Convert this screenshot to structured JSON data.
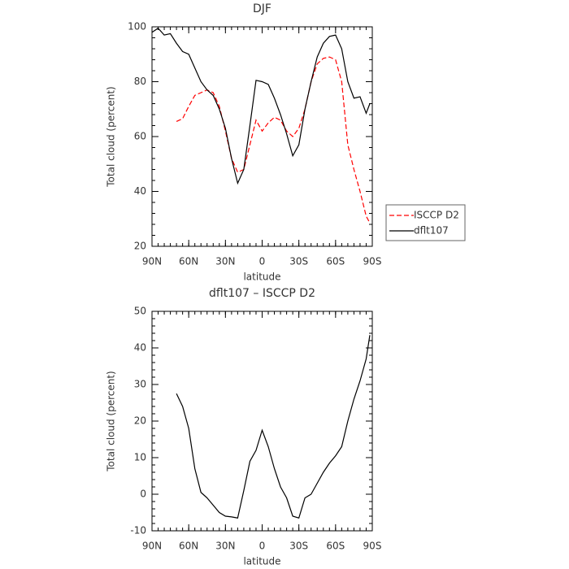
{
  "chart_data": [
    {
      "type": "line",
      "title": "DJF",
      "xlabel": "latitude",
      "ylabel": "Total cloud (percent)",
      "x": [
        90,
        85,
        80,
        75,
        70,
        65,
        60,
        55,
        50,
        45,
        40,
        35,
        30,
        25,
        20,
        15,
        10,
        5,
        0,
        -5,
        -10,
        -15,
        -20,
        -25,
        -30,
        -35,
        -40,
        -45,
        -50,
        -55,
        -60,
        -65,
        -70,
        -75,
        -80,
        -85,
        -88
      ],
      "series": [
        {
          "name": "ISCCP D2",
          "color": "#ff0000",
          "dash": true,
          "values": [
            null,
            null,
            null,
            null,
            65.5,
            66.5,
            71,
            75,
            76,
            77,
            76,
            71,
            62,
            52,
            47,
            48,
            57,
            66,
            62,
            65,
            67,
            66,
            62,
            60,
            63,
            70,
            80,
            86.5,
            88.5,
            89,
            88,
            80,
            57,
            48,
            40,
            31,
            28.5
          ]
        },
        {
          "name": "dflt107",
          "color": "#000000",
          "dash": false,
          "values": [
            98,
            99.5,
            97,
            97.5,
            94,
            91,
            90,
            85,
            80,
            77,
            75,
            70,
            63,
            52,
            43,
            48,
            64,
            80.5,
            80,
            79,
            74,
            68,
            61,
            53,
            57,
            70,
            80,
            89,
            94,
            96.5,
            97,
            92,
            80,
            74,
            74.5,
            68.5,
            72
          ]
        }
      ],
      "xlim": [
        90,
        -90
      ],
      "xticks": [
        {
          "value": 90,
          "label": "90N"
        },
        {
          "value": 60,
          "label": "60N"
        },
        {
          "value": 30,
          "label": "30N"
        },
        0,
        {
          "value": -30,
          "label": "30S"
        },
        {
          "value": -60,
          "label": "60S"
        },
        {
          "value": -90,
          "label": "90S"
        }
      ],
      "ylim": [
        20,
        100
      ],
      "yticks": [
        20,
        40,
        60,
        80,
        100
      ],
      "legend": "right"
    },
    {
      "type": "line",
      "title": "dflt107 – ISCCP D2",
      "xlabel": "latitude",
      "ylabel": "Total cloud (percent)",
      "x": [
        70,
        65,
        60,
        55,
        50,
        45,
        40,
        35,
        30,
        25,
        20,
        15,
        10,
        5,
        0,
        -5,
        -10,
        -15,
        -20,
        -25,
        -30,
        -35,
        -40,
        -45,
        -50,
        -55,
        -60,
        -65,
        -70,
        -75,
        -80,
        -85,
        -88
      ],
      "series": [
        {
          "color": "#000000",
          "dash": false,
          "values": [
            27.5,
            24,
            18,
            7,
            0.5,
            -1,
            -3,
            -5,
            -6,
            -6.2,
            -6.5,
            1,
            9,
            12,
            17.5,
            13,
            7,
            2,
            -1,
            -6,
            -6.5,
            -1,
            0,
            3,
            6,
            8.5,
            10.5,
            13,
            20,
            26,
            31,
            37,
            43.5
          ]
        }
      ],
      "xlim": [
        90,
        -90
      ],
      "xticks": [
        {
          "value": 90,
          "label": "90N"
        },
        {
          "value": 60,
          "label": "60N"
        },
        {
          "value": 30,
          "label": "30N"
        },
        0,
        {
          "value": -30,
          "label": "30S"
        },
        {
          "value": -60,
          "label": "60S"
        },
        {
          "value": -90,
          "label": "90S"
        }
      ],
      "ylim": [
        -10,
        50
      ],
      "yticks": [
        -10,
        0,
        10,
        20,
        30,
        40,
        50
      ]
    }
  ]
}
